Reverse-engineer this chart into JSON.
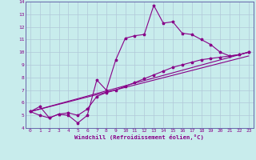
{
  "title": "",
  "xlabel": "Windchill (Refroidissement éolien,°C)",
  "bg_color": "#c8ecec",
  "grid_color": "#b0c8d8",
  "line_color": "#880088",
  "xlim": [
    -0.5,
    23.5
  ],
  "ylim": [
    4,
    14
  ],
  "xticks": [
    0,
    1,
    2,
    3,
    4,
    5,
    6,
    7,
    8,
    9,
    10,
    11,
    12,
    13,
    14,
    15,
    16,
    17,
    18,
    19,
    20,
    21,
    22,
    23
  ],
  "yticks": [
    4,
    5,
    6,
    7,
    8,
    9,
    10,
    11,
    12,
    13,
    14
  ],
  "line_main": [
    [
      0,
      5.3
    ],
    [
      1,
      5.7
    ],
    [
      2,
      4.8
    ],
    [
      3,
      5.1
    ],
    [
      4,
      5.0
    ],
    [
      5,
      4.4
    ],
    [
      6,
      5.0
    ],
    [
      7,
      7.8
    ],
    [
      8,
      7.0
    ],
    [
      9,
      9.4
    ],
    [
      10,
      11.1
    ],
    [
      11,
      11.3
    ],
    [
      12,
      11.4
    ],
    [
      13,
      13.7
    ],
    [
      14,
      12.3
    ],
    [
      15,
      12.4
    ],
    [
      16,
      11.5
    ],
    [
      17,
      11.4
    ],
    [
      18,
      11.0
    ],
    [
      19,
      10.6
    ],
    [
      20,
      10.0
    ],
    [
      21,
      9.7
    ],
    [
      22,
      9.8
    ],
    [
      23,
      10.0
    ]
  ],
  "line_straight1": [
    [
      0,
      5.3
    ],
    [
      23,
      10.0
    ]
  ],
  "line_straight2": [
    [
      0,
      5.3
    ],
    [
      23,
      9.7
    ]
  ],
  "line_mid": [
    [
      0,
      5.3
    ],
    [
      1,
      5.0
    ],
    [
      2,
      4.8
    ],
    [
      3,
      5.1
    ],
    [
      4,
      5.2
    ],
    [
      5,
      5.0
    ],
    [
      6,
      5.5
    ],
    [
      7,
      6.5
    ],
    [
      8,
      6.8
    ],
    [
      9,
      7.0
    ],
    [
      10,
      7.3
    ],
    [
      11,
      7.6
    ],
    [
      12,
      7.9
    ],
    [
      13,
      8.2
    ],
    [
      14,
      8.5
    ],
    [
      15,
      8.8
    ],
    [
      16,
      9.0
    ],
    [
      17,
      9.2
    ],
    [
      18,
      9.4
    ],
    [
      19,
      9.5
    ],
    [
      20,
      9.6
    ],
    [
      21,
      9.7
    ],
    [
      22,
      9.8
    ],
    [
      23,
      10.0
    ]
  ]
}
